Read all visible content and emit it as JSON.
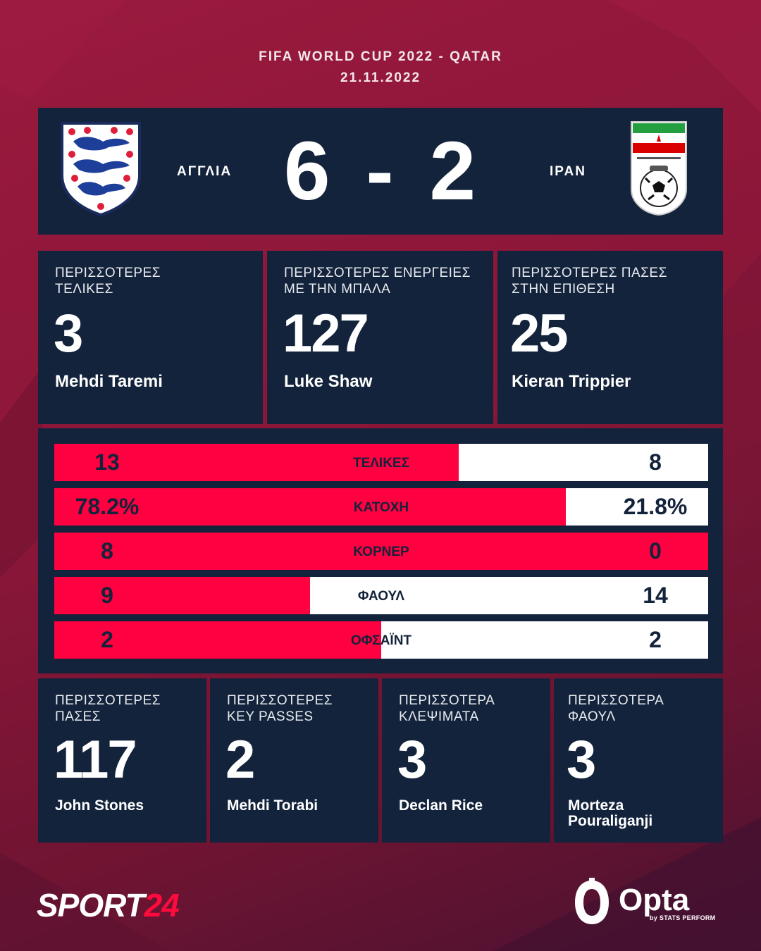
{
  "header": {
    "competition": "FIFA WORLD CUP 2022 - QATAR",
    "date": "21.11.2022"
  },
  "match": {
    "home_team": "ΑΓΓΛΙΑ",
    "away_team": "ΙΡΑΝ",
    "home_score": "6",
    "separator": "-",
    "away_score": "2"
  },
  "top_cards": [
    {
      "label": "ΠΕΡΙΣΣΟΤΕΡΕΣ\nΤΕΛΙΚΕΣ",
      "value": "3",
      "player": "Mehdi Taremi"
    },
    {
      "label": "ΠΕΡΙΣΣΟΤΕΡΕΣ ΕΝΕΡΓΕΙΕΣ\nΜΕ ΤΗΝ ΜΠΑΛΑ",
      "value": "127",
      "player": "Luke Shaw"
    },
    {
      "label": "ΠΕΡΙΣΣΟΤΕΡΕΣ ΠΑΣΕΣ\nΣΤΗΝ ΕΠΙΘΕΣΗ",
      "value": "25",
      "player": "Kieran Trippier"
    }
  ],
  "team_stats": [
    {
      "label": "ΤΕΛΙΚΕΣ",
      "home": "13",
      "away": "8",
      "home_share": 0.619
    },
    {
      "label": "ΚΑΤΟΧΗ",
      "home": "78.2%",
      "away": "21.8%",
      "home_share": 0.782
    },
    {
      "label": "ΚΟΡΝΕΡ",
      "home": "8",
      "away": "0",
      "home_share": 1.0
    },
    {
      "label": "ΦΑΟΥΛ",
      "home": "9",
      "away": "14",
      "home_share": 0.391
    },
    {
      "label": "ΟΦΣΑΪΝΤ",
      "home": "2",
      "away": "2",
      "home_share": 0.5
    }
  ],
  "bottom_cards": [
    {
      "label": "ΠΕΡΙΣΣΟΤΕΡΕΣ\nΠΑΣΕΣ",
      "value": "117",
      "player": "John Stones"
    },
    {
      "label": "ΠΕΡΙΣΣΟΤΕΡΕΣ\nKEY PASSES",
      "value": "2",
      "player": "Mehdi Torabi"
    },
    {
      "label": "ΠΕΡΙΣΣΟΤΕΡΑ\nΚΛΕΨΙΜΑΤΑ",
      "value": "3",
      "player": "Declan Rice"
    },
    {
      "label": "ΠΕΡΙΣΣΟΤΕΡΑ\nΦΑΟΥΛ",
      "value": "3",
      "player": "Morteza\nPouraliganji"
    }
  ],
  "footer": {
    "brand_left_a": "SPORT",
    "brand_left_b": "24",
    "brand_right": "Opta",
    "brand_right_sub": "by STATS PERFORM"
  },
  "colors": {
    "background": "#8a1638",
    "panel": "#13233b",
    "accent": "#ff0040",
    "away_bar": "#ffffff"
  }
}
